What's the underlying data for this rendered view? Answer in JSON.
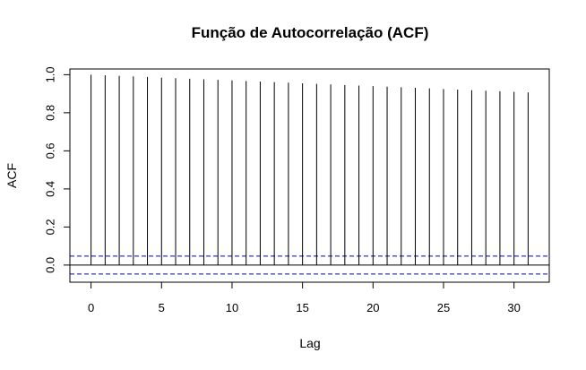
{
  "chart_data": {
    "type": "bar",
    "title": "Função de Autocorrelação (ACF)",
    "xlabel": "Lag",
    "ylabel": "ACF",
    "xlim": [
      -1.5,
      32.5
    ],
    "ylim": [
      -0.09,
      1.03
    ],
    "x_ticks": [
      0,
      5,
      10,
      15,
      20,
      25,
      30
    ],
    "y_ticks": [
      0.0,
      0.2,
      0.4,
      0.6,
      0.8,
      1.0
    ],
    "y_tick_labels": [
      "0.0",
      "0.2",
      "0.4",
      "0.6",
      "0.8",
      "1.0"
    ],
    "lags": [
      0,
      1,
      2,
      3,
      4,
      5,
      6,
      7,
      8,
      9,
      10,
      11,
      12,
      13,
      14,
      15,
      16,
      17,
      18,
      19,
      20,
      21,
      22,
      23,
      24,
      25,
      26,
      27,
      28,
      29,
      30,
      31
    ],
    "values": [
      1.0,
      0.997,
      0.994,
      0.991,
      0.988,
      0.985,
      0.982,
      0.979,
      0.976,
      0.973,
      0.97,
      0.967,
      0.964,
      0.961,
      0.958,
      0.955,
      0.952,
      0.949,
      0.946,
      0.943,
      0.94,
      0.937,
      0.934,
      0.931,
      0.928,
      0.925,
      0.922,
      0.919,
      0.916,
      0.913,
      0.91,
      0.907
    ],
    "confidence_bound": 0.047,
    "zero_line": 0,
    "colors": {
      "bars": "#000000",
      "confidence": "#0000cc",
      "axes": "#000000"
    }
  }
}
